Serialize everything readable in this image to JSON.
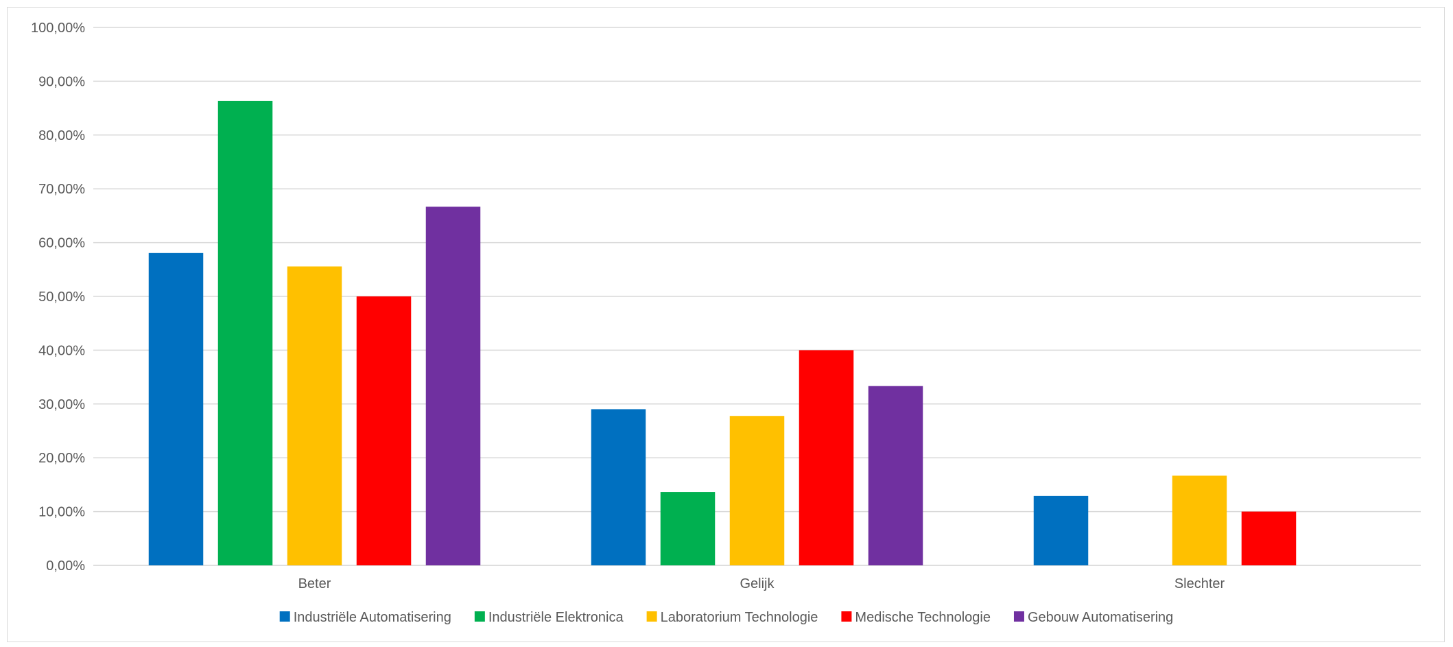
{
  "chart_data": {
    "type": "bar",
    "categories": [
      "Beter",
      "Gelijk",
      "Slechter"
    ],
    "series": [
      {
        "name": "Industriële Automatisering",
        "color": "#0070C0",
        "values": [
          58.06,
          29.03,
          12.9
        ]
      },
      {
        "name": "Industriële Elektronica",
        "color": "#00B050",
        "values": [
          86.36,
          13.64,
          0
        ]
      },
      {
        "name": "Laboratorium Technologie",
        "color": "#FFC000",
        "values": [
          55.56,
          27.78,
          16.67
        ]
      },
      {
        "name": "Medische Technologie",
        "color": "#FF0000",
        "values": [
          50.0,
          40.0,
          10.0
        ]
      },
      {
        "name": "Gebouw Automatisering",
        "color": "#7030A0",
        "values": [
          66.67,
          33.33,
          0
        ]
      }
    ],
    "y_ticks": [
      "0,00%",
      "10,00%",
      "20,00%",
      "30,00%",
      "40,00%",
      "50,00%",
      "60,00%",
      "70,00%",
      "80,00%",
      "90,00%",
      "100,00%"
    ],
    "ylim": [
      0,
      100
    ],
    "grid": true,
    "legend_position": "bottom"
  }
}
